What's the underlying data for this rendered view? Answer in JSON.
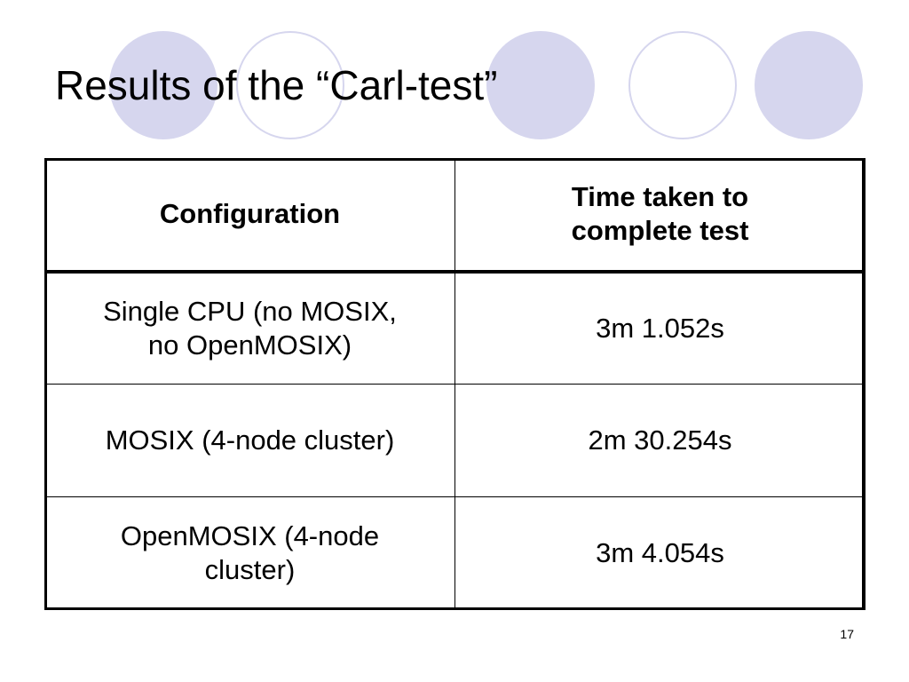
{
  "slide": {
    "title": "Results of the “Carl-test”",
    "page_number": "17"
  },
  "table": {
    "headers": {
      "configuration": "Configuration",
      "time_line1": "Time taken to",
      "time_line2": "complete test"
    },
    "rows": [
      {
        "config_line1": "Single CPU (no MOSIX,",
        "config_line2": "no OpenMOSIX)",
        "time": "3m 1.052s"
      },
      {
        "config_line1": "MOSIX (4-node cluster)",
        "config_line2": "",
        "time": "2m 30.254s"
      },
      {
        "config_line1": "OpenMOSIX (4-node",
        "config_line2": "cluster)",
        "time": "3m 4.054s"
      }
    ]
  },
  "colors": {
    "circle_fill": "#d6d6ee",
    "text": "#000000",
    "background": "#ffffff"
  }
}
